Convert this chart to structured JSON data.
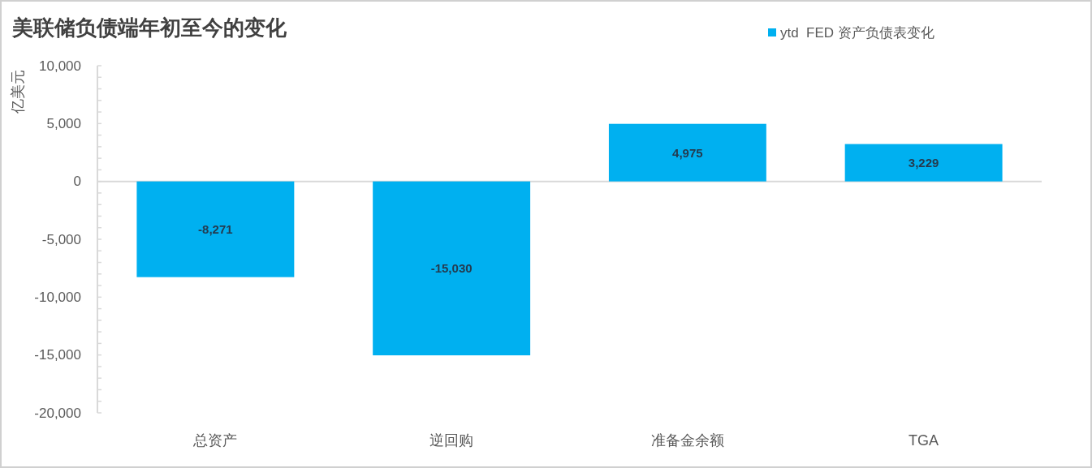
{
  "chart_data": {
    "type": "bar",
    "title": "美联储负债端年初至今的变化",
    "ylabel": "亿美元",
    "legend": "top right",
    "categories": [
      "总资产",
      "逆回购",
      "准备金余额",
      "TGA"
    ],
    "series": [
      {
        "name": "ytd  FED 资产负债表变化",
        "color": "#00b0f0",
        "values": [
          -8271,
          -15030,
          4975,
          3229
        ],
        "value_labels": [
          "-8,271",
          "-15,030",
          "4,975",
          "3,229"
        ]
      }
    ],
    "ylim": [
      -20000,
      10000
    ],
    "yticks": [
      {
        "value": -20000,
        "label": "-20,000"
      },
      {
        "value": -19000,
        "label": null
      },
      {
        "value": -18000,
        "label": null
      },
      {
        "value": -17000,
        "label": null
      },
      {
        "value": -16000,
        "label": null
      },
      {
        "value": -15000,
        "label": "-15,000"
      },
      {
        "value": -14000,
        "label": null
      },
      {
        "value": -13000,
        "label": null
      },
      {
        "value": -12000,
        "label": null
      },
      {
        "value": -11000,
        "label": null
      },
      {
        "value": -10000,
        "label": "-10,000"
      },
      {
        "value": -9000,
        "label": null
      },
      {
        "value": -8000,
        "label": null
      },
      {
        "value": -7000,
        "label": null
      },
      {
        "value": -6000,
        "label": null
      },
      {
        "value": -5000,
        "label": "-5,000"
      },
      {
        "value": -4000,
        "label": null
      },
      {
        "value": -3000,
        "label": null
      },
      {
        "value": -2000,
        "label": null
      },
      {
        "value": -1000,
        "label": null
      },
      0,
      {
        "value": 1000,
        "label": null
      },
      {
        "value": 2000,
        "label": null
      },
      {
        "value": 3000,
        "label": null
      },
      {
        "value": 4000,
        "label": null
      },
      {
        "value": 5000,
        "label": "5,000"
      },
      {
        "value": 6000,
        "label": null
      },
      {
        "value": 7000,
        "label": null
      },
      {
        "value": 8000,
        "label": null
      },
      {
        "value": 9000,
        "label": null
      },
      {
        "value": 10000,
        "label": "10,000"
      }
    ]
  }
}
